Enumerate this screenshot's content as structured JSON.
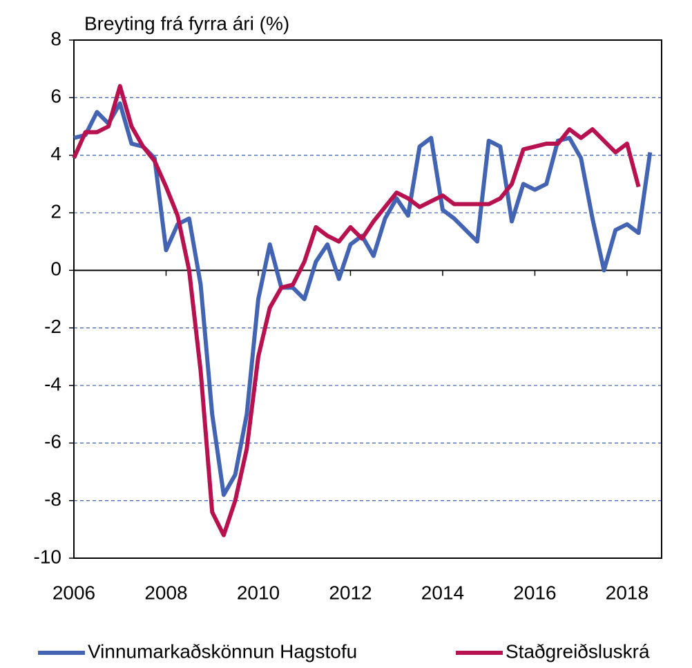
{
  "chart_data": {
    "type": "line",
    "y_axis_label": "Breyting frá fyrra ári (%)",
    "x": [
      2006,
      2006.25,
      2006.5,
      2006.75,
      2007,
      2007.25,
      2007.5,
      2007.75,
      2008,
      2008.25,
      2008.5,
      2008.75,
      2009,
      2009.25,
      2009.5,
      2009.75,
      2010,
      2010.25,
      2010.5,
      2010.75,
      2011,
      2011.25,
      2011.5,
      2011.75,
      2012,
      2012.25,
      2012.5,
      2012.75,
      2013,
      2013.25,
      2013.5,
      2013.75,
      2014,
      2014.25,
      2014.5,
      2014.75,
      2015,
      2015.25,
      2015.5,
      2015.75,
      2016,
      2016.25,
      2016.5,
      2016.75,
      2017,
      2017.25,
      2017.5,
      2017.75,
      2018,
      2018.25,
      2018.5
    ],
    "series": [
      {
        "name": "Vinnumarkaðskönnun Hagstofu",
        "color": "#4363b3",
        "values": [
          4.6,
          4.7,
          5.5,
          5.1,
          5.8,
          4.4,
          4.3,
          3.9,
          0.7,
          1.6,
          1.8,
          -0.5,
          -5.0,
          -7.8,
          -7.1,
          -5.0,
          -1.0,
          0.9,
          -0.6,
          -0.6,
          -1.0,
          0.3,
          0.9,
          -0.3,
          0.9,
          1.2,
          0.5,
          1.8,
          2.5,
          1.9,
          4.3,
          4.6,
          2.1,
          1.8,
          1.4,
          1.0,
          4.5,
          4.3,
          1.7,
          3.0,
          2.8,
          3.0,
          4.5,
          4.6,
          3.9,
          1.8,
          0.0,
          1.4,
          1.6,
          1.3,
          4.1
        ]
      },
      {
        "name": "Staðgreiðsluskrá",
        "color": "#b8114f",
        "values": [
          3.9,
          4.8,
          4.8,
          5.0,
          6.4,
          5.0,
          4.3,
          3.8,
          2.9,
          1.9,
          0.0,
          -3.5,
          -8.4,
          -9.2,
          -8.0,
          -6.2,
          -3.0,
          -1.3,
          -0.6,
          -0.5,
          0.3,
          1.5,
          1.2,
          1.0,
          1.5,
          1.1,
          1.7,
          2.2,
          2.7,
          2.5,
          2.2,
          2.4,
          2.6,
          2.3,
          2.3,
          2.3,
          2.3,
          2.5,
          3.0,
          4.2,
          4.3,
          4.4,
          4.4,
          4.9,
          4.6,
          4.9,
          4.5,
          4.1,
          4.4,
          2.9,
          null
        ]
      }
    ],
    "xlim": [
      2006,
      2018.75
    ],
    "xticks": [
      2006,
      2008,
      2010,
      2012,
      2014,
      2016,
      2018
    ],
    "ylim": [
      -10,
      8
    ],
    "yticks": [
      -10,
      -8,
      -6,
      -4,
      -2,
      0,
      2,
      4,
      6,
      8
    ],
    "grid": true,
    "legend": "bottom"
  }
}
